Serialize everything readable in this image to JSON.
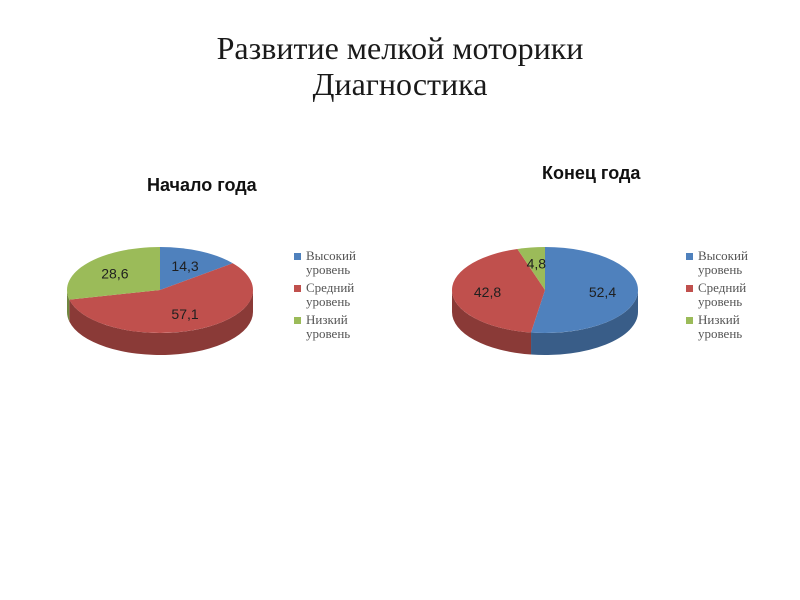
{
  "slide": {
    "title_line1": "Развитие мелкой моторики",
    "title_line2": "Диагностика"
  },
  "chart_data": [
    {
      "type": "pie",
      "title": "Начало года",
      "categories": [
        "Высокий уровень",
        "Средний уровень",
        "Низкий уровень"
      ],
      "values": [
        14.3,
        57.1,
        28.6
      ],
      "labels": [
        "14,3",
        "57,1",
        "28,6"
      ],
      "colors": [
        "#4f81bd",
        "#c0504d",
        "#9bbb59"
      ],
      "style": "3d",
      "legend_position": "right"
    },
    {
      "type": "pie",
      "title": "Конец года",
      "categories": [
        "Высокий уровень",
        "Средний уровень",
        "Низкий уровень"
      ],
      "values": [
        52.4,
        42.8,
        4.8
      ],
      "labels": [
        "52,4",
        "42,8",
        "4,8"
      ],
      "colors": [
        "#4f81bd",
        "#c0504d",
        "#9bbb59"
      ],
      "style": "3d",
      "legend_position": "right"
    }
  ]
}
